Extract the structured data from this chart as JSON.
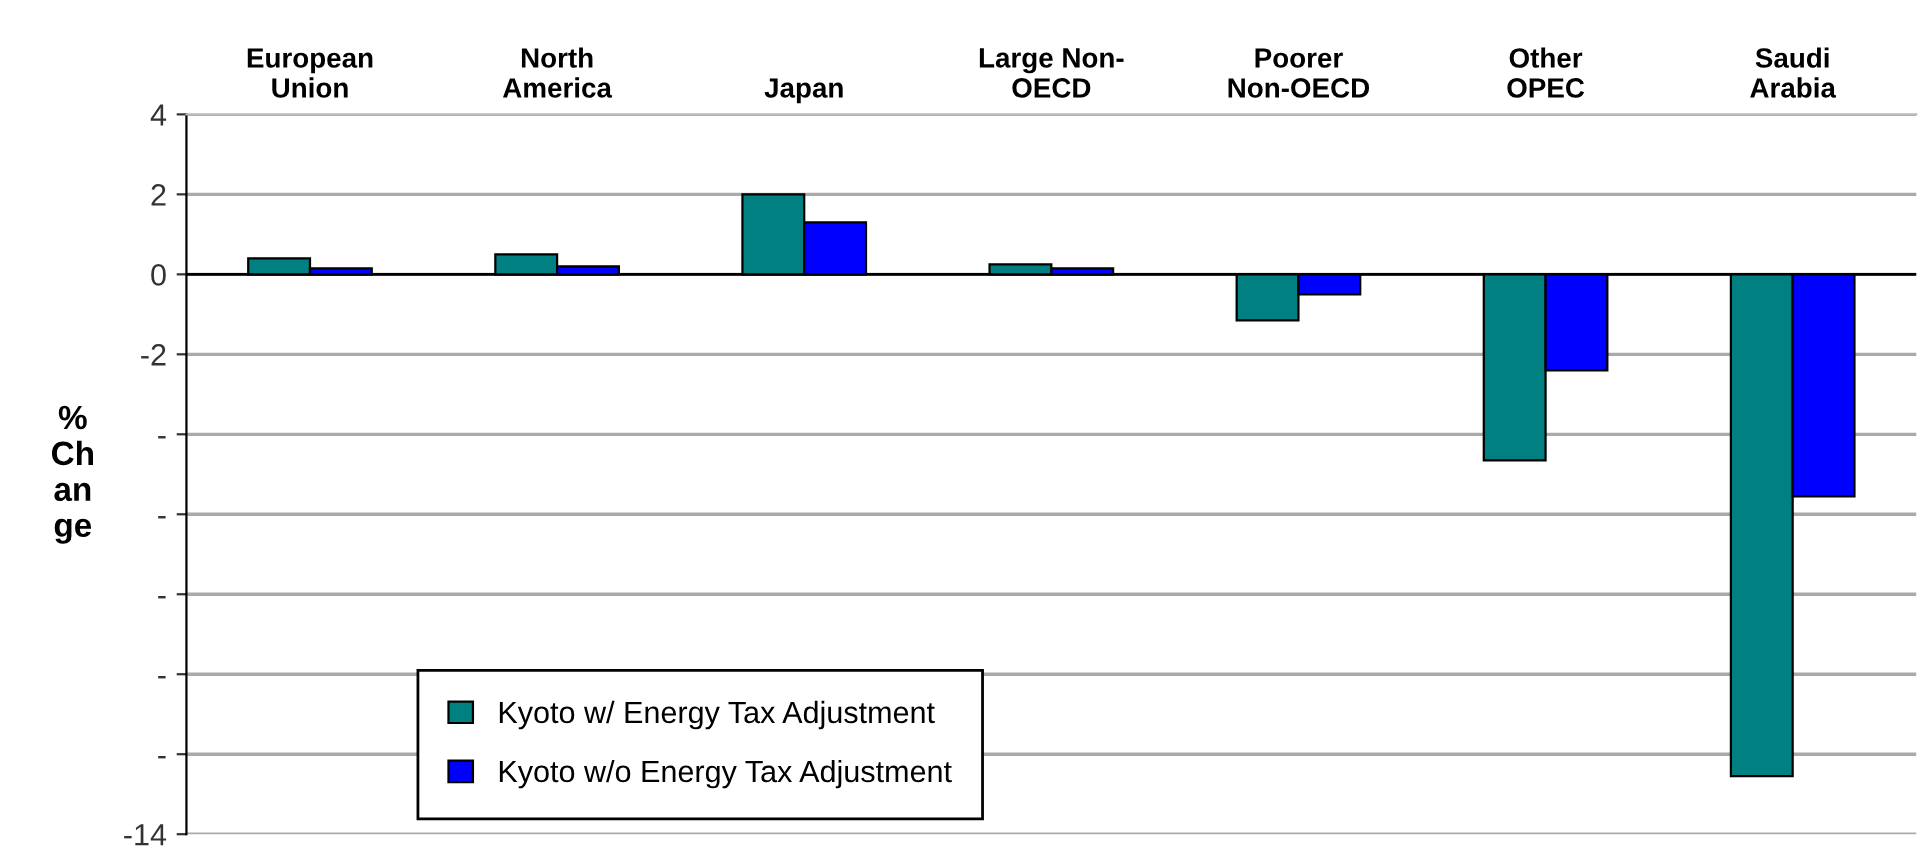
{
  "chart_data": {
    "type": "bar",
    "categories": [
      "European\nUnion",
      "North\nAmerica",
      "Japan",
      "Large Non-\nOECD",
      "Poorer\nNon-OECD",
      "Other\nOPEC",
      "Saudi\nArabia"
    ],
    "ylabel": "%\nCh\nan\nge",
    "series": [
      {
        "name": "Kyoto w/ Energy Tax Adjustment",
        "color": "#008080",
        "values": [
          0.4,
          0.5,
          2.0,
          0.25,
          -1.15,
          -4.65,
          -12.55
        ]
      },
      {
        "name": "Kyoto w/o Energy Tax Adjustment",
        "color": "#0000ff",
        "values": [
          0.15,
          0.2,
          1.3,
          0.15,
          -0.5,
          -2.4,
          -5.55
        ]
      }
    ],
    "ylim": [
      -14,
      4
    ],
    "yticks": [
      4,
      2,
      0,
      -2,
      {
        "value": -4,
        "label": "-"
      },
      {
        "value": -6,
        "label": "-"
      },
      {
        "value": -8,
        "label": "-"
      },
      {
        "value": -10,
        "label": "-"
      },
      {
        "value": -12,
        "label": "-"
      },
      -14
    ],
    "grid": "y",
    "legend": "bottom left"
  }
}
